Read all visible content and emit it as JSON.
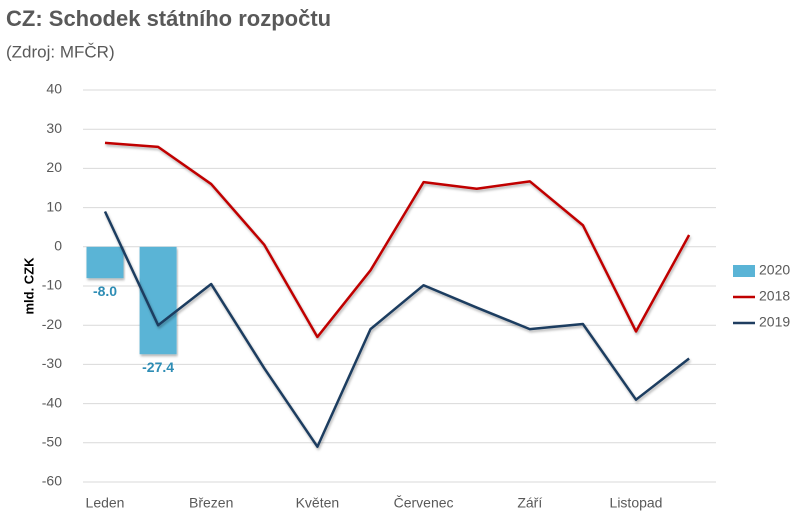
{
  "chart_data": {
    "type": "line",
    "title": "CZ: Schodek státního rozpočtu",
    "subtitle": "(Zdroj: MFČR)",
    "y_label": "mld. CZK",
    "categories": [
      "Leden",
      null,
      "Březen",
      null,
      "Květen",
      null,
      "Červenec",
      null,
      "Září",
      null,
      "Listopad",
      null
    ],
    "series": [
      {
        "name": "2020",
        "type": "bar",
        "color": "#5ab4d6",
        "values": [
          -8.0,
          -27.4,
          null,
          null,
          null,
          null,
          null,
          null,
          null,
          null,
          null,
          null
        ],
        "value_labels": [
          "-8.0",
          "-27.4",
          null,
          null,
          null,
          null,
          null,
          null,
          null,
          null,
          null,
          null
        ]
      },
      {
        "name": "2018",
        "type": "line",
        "color": "#c00000",
        "values": [
          26.5,
          25.5,
          16,
          0.5,
          -23,
          -6,
          16.5,
          14.8,
          16.7,
          5.5,
          -21.6,
          3
        ]
      },
      {
        "name": "2019",
        "type": "line",
        "color": "#1f3d60",
        "values": [
          9,
          -20,
          -9.5,
          -31,
          -51,
          -21,
          -9.8,
          -15.5,
          -21,
          -19.7,
          -39,
          -28.5
        ]
      }
    ],
    "ylim": [
      -60,
      40
    ],
    "yticks": [
      -60,
      -50,
      -40,
      -30,
      -20,
      -10,
      0,
      10,
      20,
      30,
      40
    ],
    "grid": true,
    "legend": "right"
  }
}
